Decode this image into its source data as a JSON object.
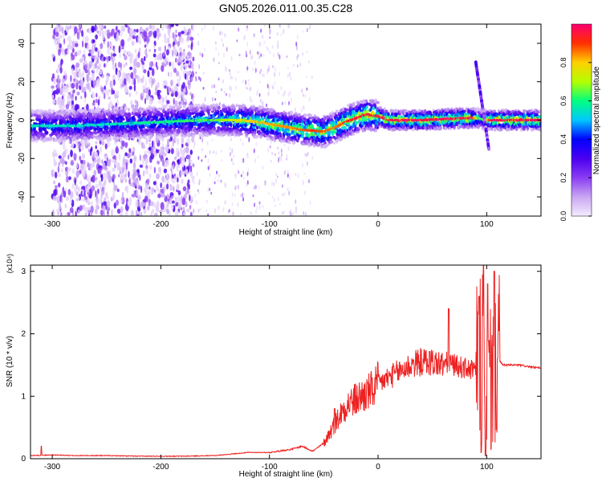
{
  "title": "GN05.2026.011.00.35.C28",
  "chart_data": [
    {
      "type": "heatmap",
      "xlabel": "Height of straight line (km)",
      "ylabel": "Frequency (Hz)",
      "xlim": [
        -320,
        150
      ],
      "ylim": [
        -50,
        50
      ],
      "xticks": [
        -300,
        -200,
        -100,
        0,
        100
      ],
      "xtick_labels": [
        "-300",
        "-200",
        "-100",
        "0",
        "100"
      ],
      "yticks": [
        -40,
        -20,
        0,
        20,
        40
      ],
      "ytick_labels": [
        "-40",
        "-20",
        "0",
        "20",
        "40"
      ],
      "colorbar": {
        "label": "Normalized spectral amplitude",
        "range": [
          0,
          1
        ],
        "ticks": [
          0.0,
          0.2,
          0.4,
          0.6,
          0.8
        ],
        "tick_labels": [
          "0.0",
          "0.2",
          "0.4",
          "0.6",
          "0.8"
        ],
        "colors": [
          "#f4ecff",
          "#c9a6f2",
          "#8a3cf2",
          "#4b00f0",
          "#0000ff",
          "#00c8ff",
          "#00ff80",
          "#b4ff00",
          "#ffd000",
          "#ff3000",
          "#ff0070"
        ]
      },
      "ridge_center": {
        "x": [
          -320,
          -280,
          -240,
          -200,
          -160,
          -130,
          -110,
          -90,
          -70,
          -50,
          -40,
          -30,
          -20,
          -10,
          0,
          10,
          40,
          80,
          90,
          100,
          110,
          150
        ],
        "freq": [
          -3,
          -3,
          -2,
          -1,
          0,
          0,
          -1,
          -3,
          -5,
          -6,
          -4,
          -1,
          1,
          3,
          2,
          0,
          0,
          1,
          1,
          0,
          0,
          0
        ]
      },
      "ridge_peak_amplitude": {
        "x": [
          -320,
          -250,
          -200,
          -150,
          -120,
          -80,
          -60,
          -40,
          -20,
          0,
          20,
          60,
          85,
          95,
          105,
          150
        ],
        "amp": [
          0.55,
          0.55,
          0.6,
          0.65,
          0.8,
          0.85,
          0.9,
          0.85,
          0.95,
          0.95,
          0.98,
          0.98,
          0.98,
          0.6,
          0.98,
          0.98
        ]
      },
      "features": [
        {
          "note": "broadband noise",
          "x_range": [
            -300,
            -170
          ],
          "freq_range": [
            -50,
            50
          ]
        },
        {
          "note": "sloped streak",
          "x_from": 90,
          "x_to": 102,
          "freq_from": 30,
          "freq_to": -15
        }
      ]
    },
    {
      "type": "line",
      "series_name": "SNR",
      "color": "#ee2222",
      "xlabel": "Height of straight line (km)",
      "ylabel": "SNR (10 * v/v)",
      "scale_label": "(x10⁴)",
      "xlim": [
        -320,
        150
      ],
      "ylim": [
        0,
        3.1
      ],
      "xticks": [
        -300,
        -200,
        -100,
        0,
        100
      ],
      "xtick_labels": [
        "-300",
        "-200",
        "-100",
        "0",
        "100"
      ],
      "yticks": [
        0,
        1,
        2,
        3
      ],
      "ytick_labels": [
        "0",
        "1",
        "2",
        "3"
      ],
      "x": [
        -320,
        -300,
        -280,
        -250,
        -220,
        -200,
        -180,
        -150,
        -120,
        -100,
        -80,
        -70,
        -60,
        -50,
        -45,
        -40,
        -35,
        -30,
        -25,
        -20,
        -15,
        -10,
        -5,
        0,
        10,
        20,
        30,
        40,
        50,
        60,
        65,
        70,
        80,
        90,
        95,
        100,
        105,
        110,
        115,
        120,
        130,
        140,
        150
      ],
      "y": [
        0.05,
        0.06,
        0.05,
        0.05,
        0.04,
        0.04,
        0.04,
        0.05,
        0.1,
        0.1,
        0.15,
        0.2,
        0.12,
        0.25,
        0.4,
        0.55,
        0.7,
        0.85,
        0.9,
        0.95,
        1.0,
        1.05,
        1.1,
        1.2,
        1.3,
        1.4,
        1.5,
        1.55,
        1.55,
        1.5,
        1.55,
        1.5,
        1.45,
        1.4,
        1.7,
        1.2,
        1.5,
        1.6,
        1.5,
        1.5,
        1.5,
        1.47,
        1.45
      ],
      "spikes": [
        {
          "x": -310,
          "y": 0.2
        },
        {
          "x": -40,
          "y": 0.8
        },
        {
          "x": 65,
          "y": 2.4
        },
        {
          "x": 93,
          "y": 2.6
        },
        {
          "x": 95,
          "y": 0.1
        },
        {
          "x": 97,
          "y": 3.1
        },
        {
          "x": 99,
          "y": 0.05
        },
        {
          "x": 101,
          "y": 2.8
        },
        {
          "x": 104,
          "y": 0.15
        },
        {
          "x": 107,
          "y": 3.0
        },
        {
          "x": 110,
          "y": 1.6
        }
      ]
    }
  ]
}
